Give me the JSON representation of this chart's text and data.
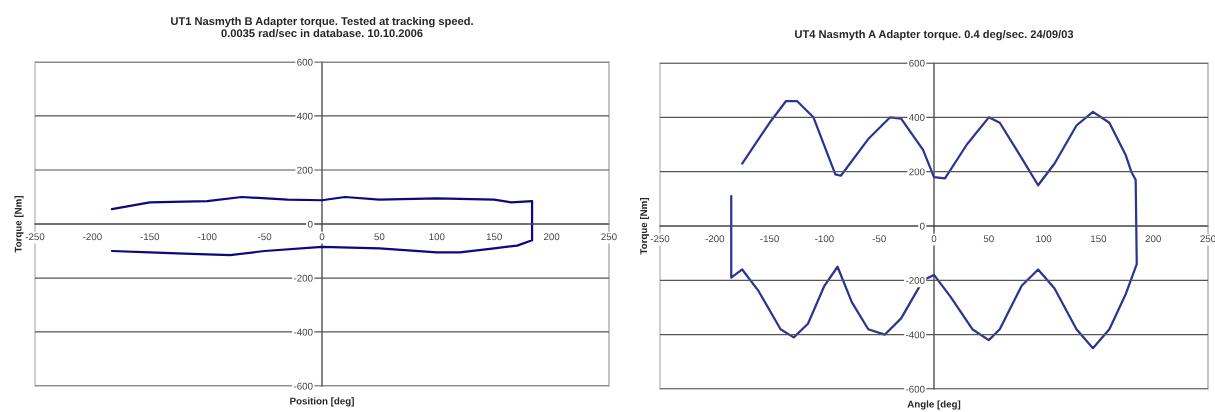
{
  "chart_data": [
    {
      "type": "line",
      "title": "UT1 Nasmyth B Adapter torque. Tested at tracking speed.\n0.0035 rad/sec in database. 10.10.2006",
      "xlabel": "Position [deg]",
      "ylabel": "Torque [Nm]",
      "xlim": [
        -250,
        250
      ],
      "xticks": [
        -250,
        -200,
        -150,
        -100,
        -50,
        0,
        50,
        100,
        150,
        200,
        250
      ],
      "ylim": [
        -600,
        600
      ],
      "yticks": [
        -600,
        -400,
        -200,
        0,
        200,
        400,
        600
      ],
      "grid": "y",
      "series": [
        {
          "color": "#0a0a80",
          "x": [
            -183,
            -150,
            -100,
            -70,
            -30,
            0,
            20,
            50,
            100,
            150,
            165,
            183,
            183,
            170,
            150,
            120,
            100,
            50,
            0,
            -50,
            -80,
            -120,
            -150,
            -183
          ],
          "values": [
            55,
            80,
            85,
            100,
            90,
            88,
            100,
            90,
            95,
            90,
            80,
            85,
            -60,
            -80,
            -90,
            -105,
            -105,
            -90,
            -85,
            -100,
            -115,
            -110,
            -105,
            -100
          ]
        }
      ]
    },
    {
      "type": "line",
      "title": "UT4 Nasmyth A Adapter torque. 0.4 deg/sec. 24/09/03",
      "xlabel": "Angle [deg]",
      "ylabel": "Torque [Nm]",
      "xlim": [
        -250,
        250
      ],
      "xticks": [
        -250,
        -200,
        -150,
        -100,
        -50,
        0,
        50,
        100,
        150,
        200,
        250
      ],
      "ylim": [
        -600,
        600
      ],
      "yticks": [
        -600,
        -400,
        -200,
        0,
        200,
        400,
        600
      ],
      "grid": "y",
      "series": [
        {
          "color": "#2a3590",
          "x": [
            -175,
            -150,
            -135,
            -125,
            -110,
            -90,
            -85,
            -60,
            -40,
            -30,
            -10,
            0,
            10,
            30,
            50,
            60,
            80,
            95,
            110,
            130,
            145,
            160,
            175,
            180,
            184,
            185,
            175,
            160,
            145,
            130,
            110,
            95,
            80,
            60,
            50,
            35,
            15,
            0,
            -10,
            -30,
            -45,
            -60,
            -75,
            -88,
            -100,
            -115,
            -128,
            -140,
            -160,
            -175,
            -185,
            -185
          ],
          "values": [
            230,
            380,
            460,
            460,
            400,
            190,
            185,
            320,
            400,
            395,
            280,
            180,
            175,
            300,
            400,
            380,
            250,
            150,
            230,
            370,
            420,
            380,
            260,
            200,
            170,
            -140,
            -250,
            -380,
            -450,
            -380,
            -230,
            -160,
            -220,
            -380,
            -420,
            -380,
            -260,
            -180,
            -200,
            -340,
            -400,
            -380,
            -280,
            -150,
            -220,
            -360,
            -410,
            -380,
            -240,
            -160,
            -190,
            110
          ]
        }
      ]
    }
  ]
}
